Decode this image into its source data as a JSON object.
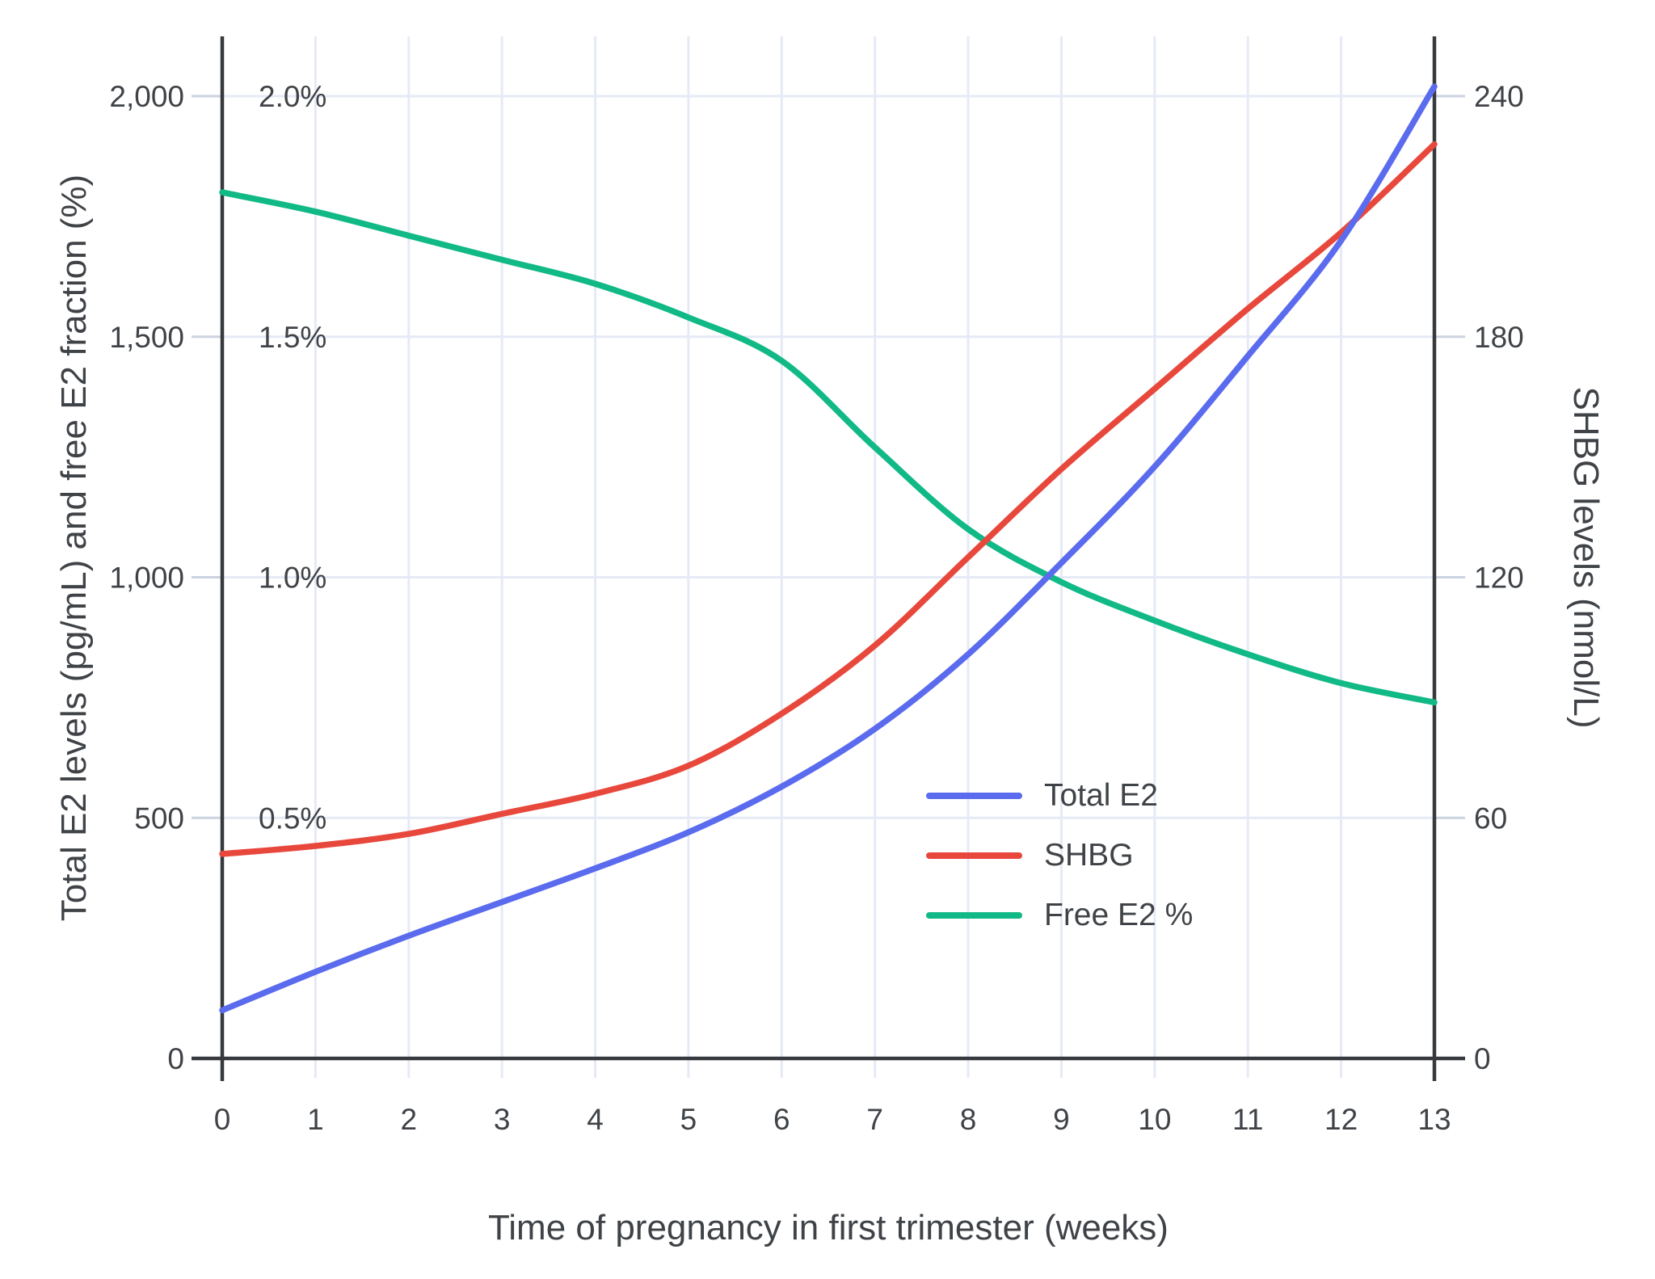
{
  "axes": {
    "x_title": "Time of pregnancy in first trimester (weeks)",
    "left_title": "Total E2 levels (pg/mL) and free E2 fraction (%)",
    "right_title": "SHBG levels (nmol/L)",
    "x_tick_labels": [
      "0",
      "1",
      "2",
      "3",
      "4",
      "5",
      "6",
      "7",
      "8",
      "9",
      "10",
      "11",
      "12",
      "13"
    ],
    "left_tick_labels": [
      "0",
      "500",
      "1,000",
      "1,500",
      "2,000"
    ],
    "left_tick_values": [
      0,
      500,
      1000,
      1500,
      2000
    ],
    "percent_tick_labels": [
      "0.5%",
      "1.0%",
      "1.5%",
      "2.0%"
    ],
    "percent_tick_values": [
      500,
      1000,
      1500,
      2000
    ],
    "right_tick_labels": [
      "0",
      "60",
      "120",
      "180",
      "240"
    ],
    "right_tick_values": [
      0,
      60,
      120,
      180,
      240
    ]
  },
  "legend": {
    "items": [
      {
        "label": "Total E2",
        "color": "#5a6bee"
      },
      {
        "label": "SHBG",
        "color": "#e8483c"
      },
      {
        "label": "Free E2 %",
        "color": "#10b985"
      }
    ]
  },
  "colors": {
    "background": "#ffffff",
    "grid": "#e6eaf6",
    "axis_line": "#36393d",
    "tick_mark": "#ccd3e0",
    "text": "#3f4347",
    "total_e2": "#5a6bee",
    "shbg": "#e8483c",
    "free_e2": "#10b985"
  },
  "chart_data": {
    "type": "line",
    "title": "",
    "xlabel": "Time of pregnancy in first trimester (weeks)",
    "ylabel_left": "Total E2 levels (pg/mL) and free E2 fraction (%)",
    "ylabel_right": "SHBG levels (nmol/L)",
    "x": [
      0,
      1,
      2,
      3,
      4,
      5,
      6,
      7,
      8,
      9,
      10,
      11,
      12,
      13
    ],
    "xlim": [
      0,
      13
    ],
    "ylim_left_pgml": [
      0,
      2124
    ],
    "ylim_right_nmoll": [
      0,
      255
    ],
    "pgml_per_percent": 1000,
    "pgml_per_nmoll": 8.3333,
    "grid": true,
    "legend_position": "center-right",
    "series": [
      {
        "name": "Total E2",
        "axis": "left",
        "units": "pg/mL",
        "color": "#5a6bee",
        "values": [
          100,
          180,
          255,
          325,
          395,
          470,
          565,
          685,
          840,
          1030,
          1230,
          1460,
          1700,
          2020
        ]
      },
      {
        "name": "SHBG",
        "axis": "right",
        "units": "nmol/L",
        "color": "#e8483c",
        "values": [
          51,
          53,
          56,
          61,
          66,
          73,
          86,
          103,
          125,
          147,
          167,
          187,
          206,
          228
        ]
      },
      {
        "name": "Free E2 %",
        "axis": "left_percent",
        "units": "%",
        "color": "#10b985",
        "values": [
          1.8,
          1.76,
          1.71,
          1.66,
          1.61,
          1.54,
          1.45,
          1.27,
          1.1,
          0.99,
          0.91,
          0.84,
          0.78,
          0.74
        ]
      }
    ]
  }
}
